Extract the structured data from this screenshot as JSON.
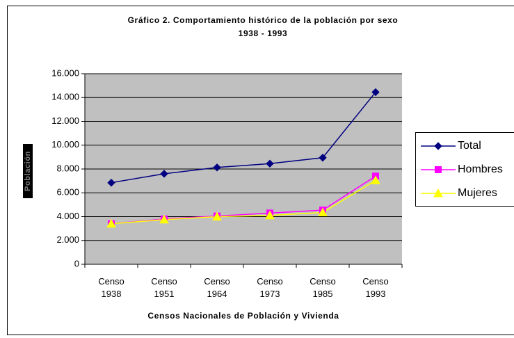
{
  "chart_data": {
    "type": "line",
    "title": "Gráfico 2. Comportamiento histórico de la población por sexo",
    "subtitle": "1938 - 1993",
    "x_label": "Censos Nacionales de Población y Vivienda",
    "y_label": "Población",
    "categories": [
      "Censo 1938",
      "Censo 1951",
      "Censo 1964",
      "Censo 1973",
      "Censo 1985",
      "Censo 1993"
    ],
    "series": [
      {
        "name": "Total",
        "color": "#000080",
        "marker": "diamond",
        "values": [
          6850,
          7600,
          8130,
          8450,
          8950,
          14450
        ]
      },
      {
        "name": "Hombres",
        "color": "#ff00ff",
        "marker": "square",
        "values": [
          3400,
          3800,
          4050,
          4300,
          4550,
          7400
        ]
      },
      {
        "name": "Mujeres",
        "color": "#ffff00",
        "marker": "triangle",
        "values": [
          3400,
          3750,
          4000,
          4100,
          4350,
          7050
        ]
      }
    ],
    "ylim": [
      0,
      16000
    ],
    "yticks": [
      0,
      {
        "value": 2000,
        "label": "2.000"
      },
      {
        "value": 4000,
        "label": "4.000"
      },
      {
        "value": 6000,
        "label": "6.000"
      },
      {
        "value": 8000,
        "label": "8.000"
      },
      {
        "value": 10000,
        "label": "10.000"
      },
      {
        "value": 12000,
        "label": "12.000"
      },
      {
        "value": 14000,
        "label": "14.000"
      },
      {
        "value": 16000,
        "label": "16.000"
      }
    ],
    "grid": true,
    "legend": "right"
  }
}
